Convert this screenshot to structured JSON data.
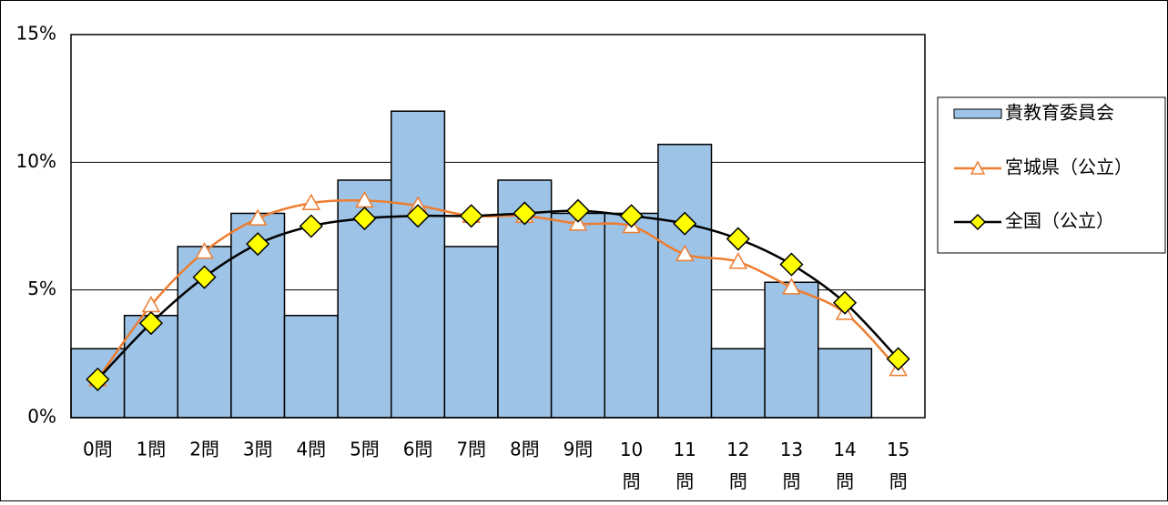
{
  "chart_data": {
    "type": "bar_line",
    "categories": [
      "0問",
      "1問",
      "2問",
      "3問",
      "4問",
      "5問",
      "6問",
      "7問",
      "8問",
      "9問",
      "10問",
      "11問",
      "12問",
      "13問",
      "14問",
      "15問"
    ],
    "series": [
      {
        "name": "貴教育委員会",
        "type": "bar",
        "color": "#9dc3e6",
        "values": [
          2.7,
          4.0,
          6.7,
          8.0,
          4.0,
          9.3,
          12.0,
          6.7,
          9.3,
          8.0,
          8.0,
          10.7,
          2.7,
          5.3,
          2.7,
          0
        ]
      },
      {
        "name": "宮城県（公立）",
        "type": "line",
        "marker": "triangle",
        "color": "#ed7d31",
        "values": [
          1.5,
          4.4,
          6.5,
          7.8,
          8.4,
          8.5,
          8.3,
          7.9,
          7.9,
          7.6,
          7.5,
          6.4,
          6.1,
          5.1,
          4.1,
          1.9
        ]
      },
      {
        "name": "全国（公立）",
        "type": "line",
        "marker": "diamond",
        "color": "#000000",
        "values": [
          1.5,
          3.7,
          5.5,
          6.8,
          7.5,
          7.8,
          7.9,
          7.9,
          8.0,
          8.1,
          7.9,
          7.6,
          7.0,
          6.0,
          4.5,
          2.3
        ]
      }
    ],
    "ylim": [
      0,
      15
    ],
    "yticks": [
      {
        "value": 0,
        "label": "0%"
      },
      {
        "value": 5,
        "label": "5%"
      },
      {
        "value": 10,
        "label": "10%"
      },
      {
        "value": 15,
        "label": "15%"
      }
    ],
    "grid": true,
    "legend": "right"
  }
}
